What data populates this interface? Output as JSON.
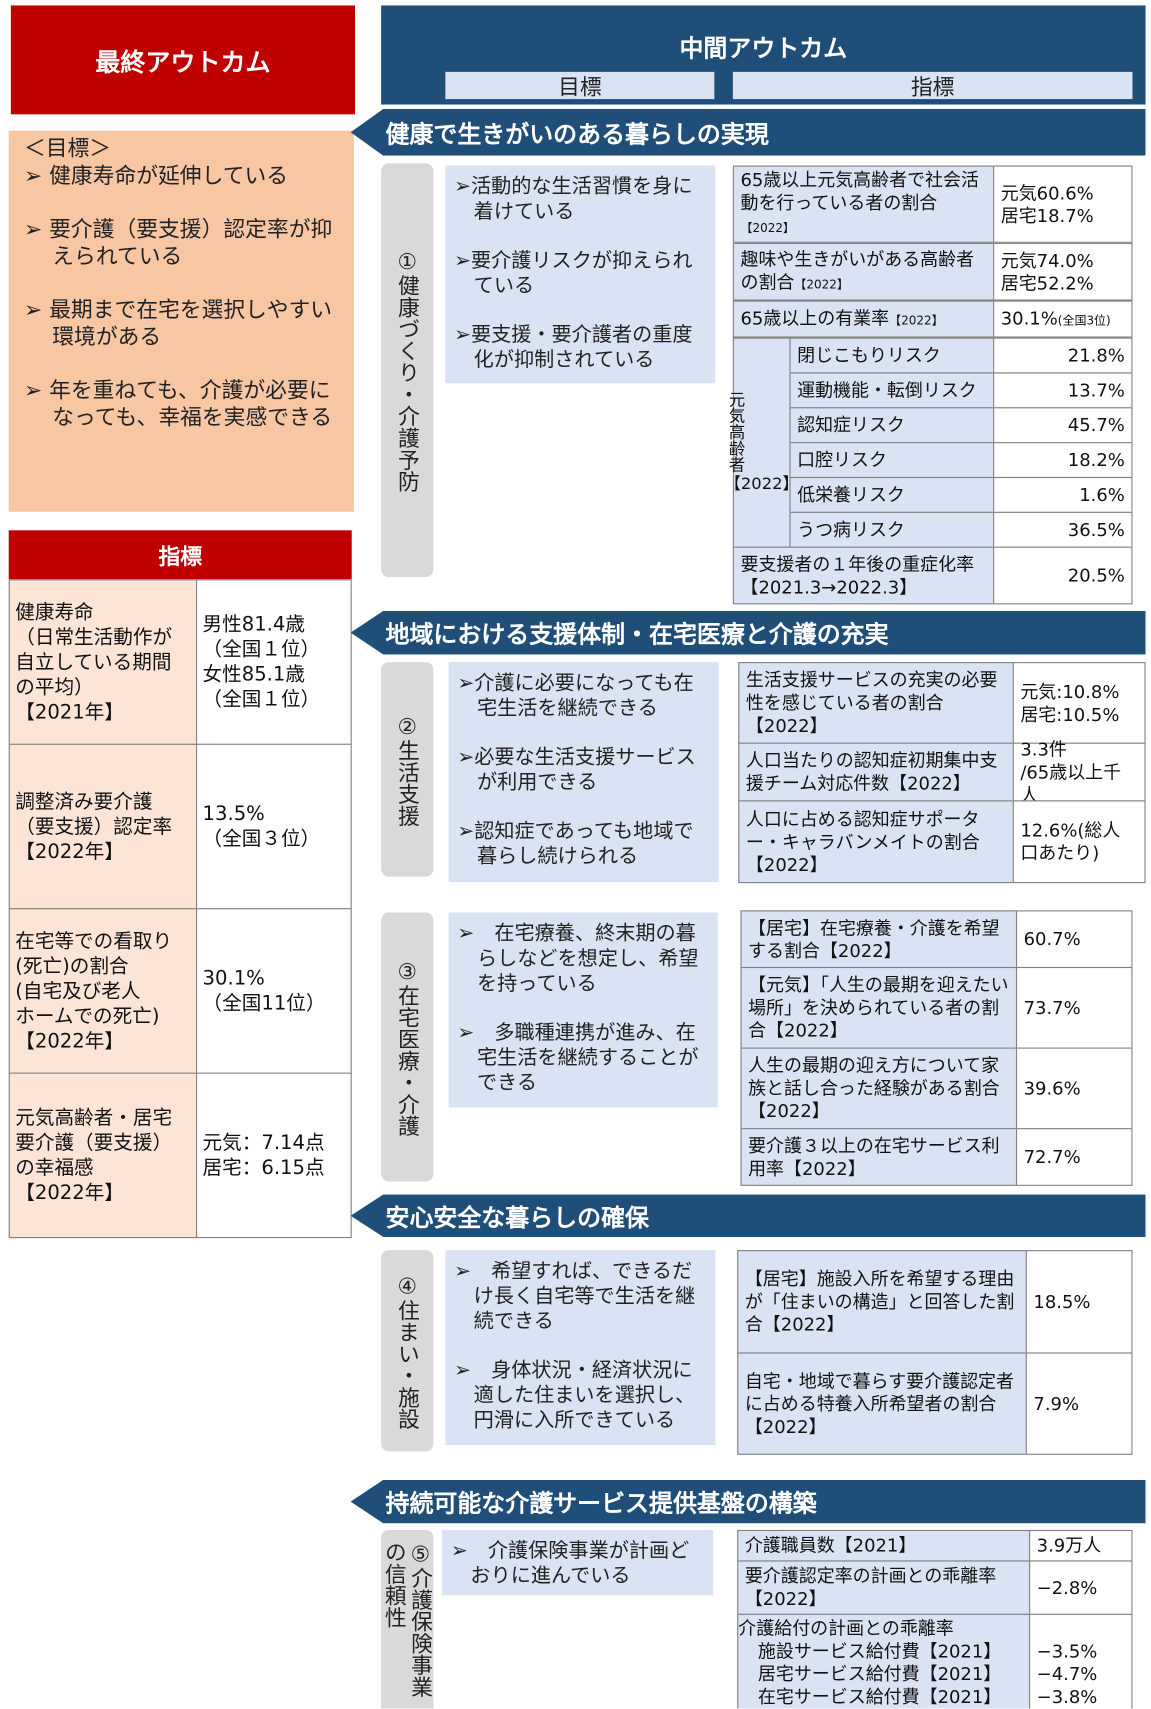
{
  "final_outcome": {
    "title": "最終アウトカム",
    "goals_heading": "＜目標＞",
    "goals": [
      "➢ 健康寿命が延伸している",
      "➢ 要介護（要支援）認定率が抑えられている",
      "➢ 最期まで在宅を選択しやすい環境がある",
      "➢ 年を重ねても、介護が必要になっても、幸福を実感できる"
    ],
    "indicators_heading": "指標",
    "indicators": [
      {
        "label": "健康寿命\n（日常生活動作が\n自立している期間\nの平均）\n【2021年】",
        "value": "男性81.4歳\n（全国１位）\n女性85.1歳\n（全国１位）"
      },
      {
        "label": "調整済み要介護\n（要支援）認定率\n【2022年】",
        "value": "13.5%\n（全国３位）"
      },
      {
        "label": "在宅等での看取り\n(死亡)の割合\n(自宅及び老人\nホームでの死亡)\n【2022年】",
        "value": "30.1%\n（全国11位）"
      },
      {
        "label": "元気高齢者・居宅\n要介護（要支援）\nの幸福感\n【2022年】",
        "value": "元気：7.14点\n居宅：6.15点"
      }
    ]
  },
  "middle_outcome": {
    "title": "中間アウトカム",
    "goals_heading": "目標",
    "indicators_heading": "指標"
  },
  "themes": [
    {
      "title": "健康で生きがいのある暮らしの実現",
      "sections": [
        {
          "label": "①健康づくり・介護予防",
          "goals": [
            "➢活動的な生活習慣を身に着けている",
            "➢要介護リスクが抑えられている",
            "➢要支援・要介護者の重度化が抑制されている"
          ],
          "indicators": [
            {
              "label": "65歳以上元気高齢者で社会活動を行っている者の割合",
              "note": "【2022】",
              "value": "元気60.6%\n居宅18.7%"
            },
            {
              "label": "趣味や生きがいがある高齢者の割合",
              "note": "【2022】",
              "value": "元気74.0%\n居宅52.2%"
            },
            {
              "label": "65歳以上の有業率",
              "note": "【2022】",
              "value": "30.1%",
              "value_note": "(全国3位)"
            },
            {
              "group": "元気高齢者",
              "note": "【2022】",
              "rows": [
                {
                  "label": "閉じこもりリスク",
                  "value": "21.8%"
                },
                {
                  "label": "運動機能・転倒リスク",
                  "value": "13.7%"
                },
                {
                  "label": "認知症リスク",
                  "value": "45.7%"
                },
                {
                  "label": "口腔リスク",
                  "value": "18.2%"
                },
                {
                  "label": "低栄養リスク",
                  "value": "1.6%"
                },
                {
                  "label": "うつ病リスク",
                  "value": "36.5%"
                }
              ]
            },
            {
              "label": "要支援者の１年後の重症化率\n【2021.3→2022.3】",
              "value": "20.5%"
            }
          ]
        }
      ]
    },
    {
      "title": "地域における支援体制・在宅医療と介護の充実",
      "sections": [
        {
          "label": "②生活支援",
          "goals": [
            "➢介護に必要になっても在宅生活を継続できる",
            "➢必要な生活支援サービスが利用できる",
            "➢認知症であっても地域で暮らし続けられる"
          ],
          "indicators": [
            {
              "label": "生活支援サービスの充実の必要性を感じている者の割合\n【2022】",
              "value": "元気:10.8%\n居宅:10.5%"
            },
            {
              "label": "人口当たりの認知症初期集中支援チーム対応件数【2022】",
              "value": "3.3件\n/65歳以上千人"
            },
            {
              "label": "人口に占める認知症サポーター・キャラバンメイトの割合【2022】",
              "value": "12.6%(総人口あたり)"
            }
          ]
        },
        {
          "label": "③在宅医療・介護",
          "goals": [
            "➢　在宅療養、終末期の暮らしなどを想定し、希望を持っている",
            "➢　多職種連携が進み、在宅生活を継続することができる"
          ],
          "indicators": [
            {
              "label": "【居宅】在宅療養・介護を希望する割合【2022】",
              "value": "60.7%"
            },
            {
              "label": "【元気】「人生の最期を迎えたい場所」を決められている者の割合【2022】",
              "value": "73.7%"
            },
            {
              "label": "人生の最期の迎え方について家族と話し合った経験がある割合【2022】",
              "value": "39.6%"
            },
            {
              "label": "要介護３以上の在宅サービス利用率【2022】",
              "value": "72.7%"
            }
          ]
        }
      ]
    },
    {
      "title": "安心安全な暮らしの確保",
      "sections": [
        {
          "label": "④住まい・施設",
          "goals": [
            "➢　希望すれば、できるだけ長く自宅等で生活を継続できる",
            "➢　身体状況・経済状況に適した住まいを選択し、円滑に入所できている"
          ],
          "indicators": [
            {
              "label": "【居宅】施設入所を希望する理由が「住まいの構造」と回答した割合【2022】",
              "value": "18.5%"
            },
            {
              "label": "自宅・地域で暮らす要介護認定者に占める特養入所希望者の割合【2022】",
              "value": "7.9%"
            }
          ]
        }
      ]
    },
    {
      "title": "持続可能な介護サービス提供基盤の構築",
      "sections": [
        {
          "label": "⑤介護保険事業の信頼性",
          "goals": [
            "➢　介護保険事業が計画どおりに進んでいる"
          ],
          "indicators": [
            {
              "label": "介護職員数【2021】",
              "value": "3.9万人"
            },
            {
              "label": "要介護認定率の計画との乖離率\n【2022】",
              "value": "−2.8%"
            },
            {
              "label": "介護給付の計画との乖離率",
              "rows": [
                {
                  "label": "施設サービス給付費【2021】",
                  "value": "−3.5%"
                },
                {
                  "label": "居宅サービス給付費【2021】",
                  "value": "−4.7%"
                },
                {
                  "label": "在宅サービス給付費【2021】",
                  "value": "−3.8%"
                }
              ]
            }
          ]
        }
      ]
    }
  ]
}
